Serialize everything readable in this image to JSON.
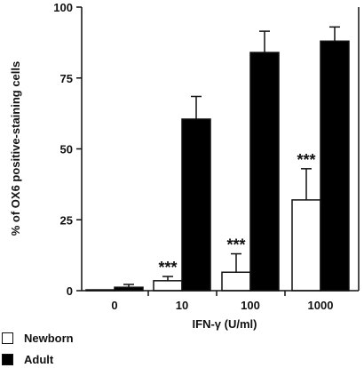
{
  "chart_data": {
    "type": "bar",
    "ylabel": "% of OX6 positive-staining cells",
    "xlabel": "IFN-γ  (U/ml)",
    "categories": [
      "0",
      "10",
      "100",
      "1000"
    ],
    "ylim": [
      0,
      100
    ],
    "yticks": [
      "0",
      "25",
      "50",
      "75",
      "100"
    ],
    "series": [
      {
        "name": "Newborn",
        "color": "#ffffff",
        "values": [
          0.3,
          3.5,
          6.5,
          32
        ],
        "errors": [
          0,
          1.5,
          6.5,
          11
        ],
        "sig": [
          "",
          "***",
          "***",
          "***"
        ]
      },
      {
        "name": "Adult",
        "color": "#000000",
        "values": [
          1.2,
          60.5,
          84,
          88
        ],
        "errors": [
          1,
          8,
          7.5,
          5
        ],
        "sig": [
          "",
          "",
          "",
          ""
        ]
      }
    ],
    "grid": false,
    "legend_position": "bottom-left"
  }
}
